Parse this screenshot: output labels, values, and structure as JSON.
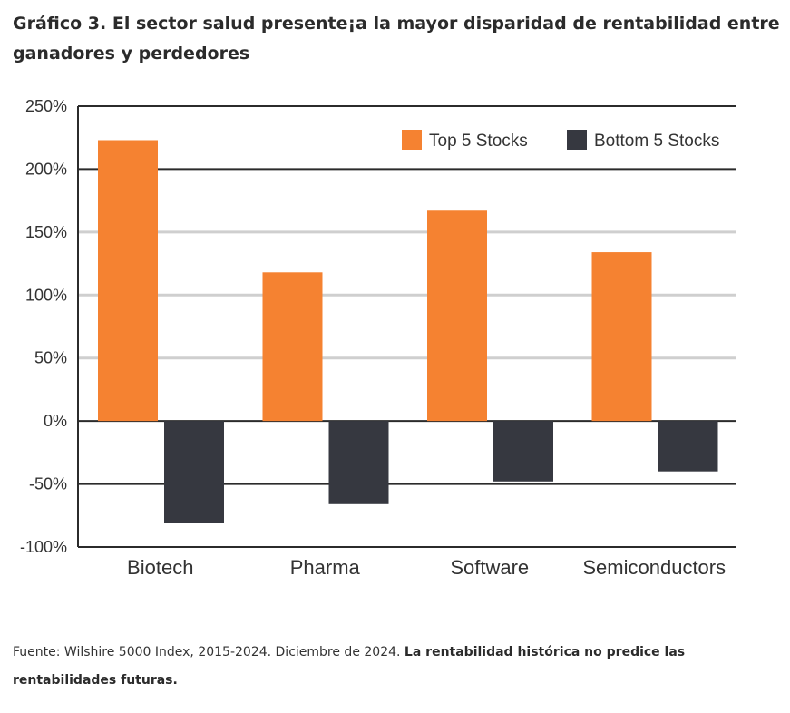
{
  "title": "Gráfico 3. El sector salud presente¡a la mayor disparidad de rentabilidad entre ganadores y perdedores",
  "source": {
    "text": "Fuente: Wilshire 5000 Index, 2015-2024. Diciembre de 2024.",
    "bold_text": "La rentabilidad histórica no predice las rentabilidades futuras."
  },
  "colors": {
    "top": "#f58231",
    "bottom": "#363840",
    "axis": "#2b2b2b",
    "grid": "#cfcfcf",
    "text": "#333333"
  },
  "chart_data": {
    "type": "bar",
    "categories": [
      "Biotech",
      "Pharma",
      "Software",
      "Semiconductors"
    ],
    "series": [
      {
        "name": "Top 5 Stocks",
        "values": [
          223,
          118,
          167,
          134
        ]
      },
      {
        "name": "Bottom 5 Stocks",
        "values": [
          -81,
          -66,
          -48,
          -40
        ]
      }
    ],
    "ylim": [
      -100,
      250
    ],
    "yticks": [
      "250%",
      "200%",
      "150%",
      "100%",
      "50%",
      "0%",
      "-50%",
      "-100%"
    ],
    "ytick_values": [
      250,
      200,
      150,
      100,
      50,
      0,
      -50,
      -100
    ],
    "grid": true,
    "legend_position": "top-right"
  }
}
